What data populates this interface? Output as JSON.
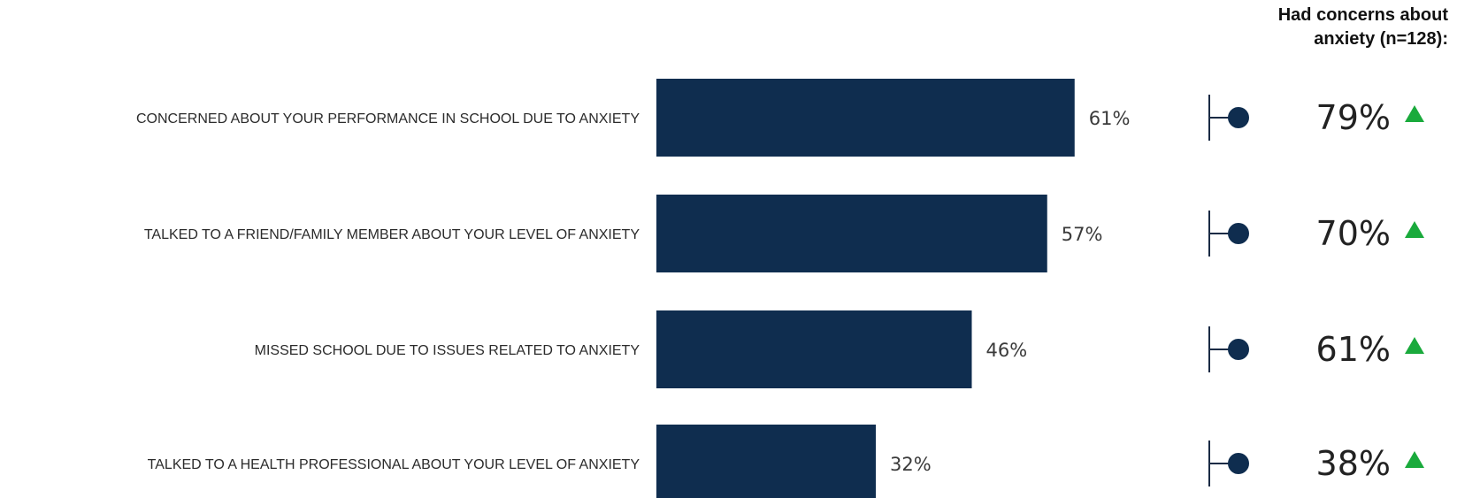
{
  "header": {
    "line1": "Had concerns about",
    "line2": "anxiety (n=128):"
  },
  "colors": {
    "bar": "#0f2d4f",
    "dot": "#0f2d4f",
    "up_arrow": "#1aaa3c"
  },
  "chart_data": {
    "type": "bar",
    "orientation": "horizontal",
    "categories": [
      "CONCERNED ABOUT YOUR PERFORMANCE IN SCHOOL DUE TO ANXIETY",
      "TALKED TO A FRIEND/FAMILY MEMBER ABOUT YOUR LEVEL OF ANXIETY",
      "MISSED SCHOOL DUE TO ISSUES RELATED TO ANXIETY",
      "TALKED TO A HEALTH PROFESSIONAL ABOUT YOUR  LEVEL OF ANXIETY"
    ],
    "values": [
      61,
      57,
      46,
      32
    ],
    "value_labels": [
      "61%",
      "57%",
      "46%",
      "32%"
    ],
    "xlim": [
      0,
      100
    ],
    "subgroup": {
      "values": [
        79,
        70,
        61,
        38
      ],
      "value_labels": [
        "79%",
        "70%",
        "61%",
        "38%"
      ],
      "indicator": "up-arrow"
    },
    "grid": false,
    "legend": "none"
  }
}
